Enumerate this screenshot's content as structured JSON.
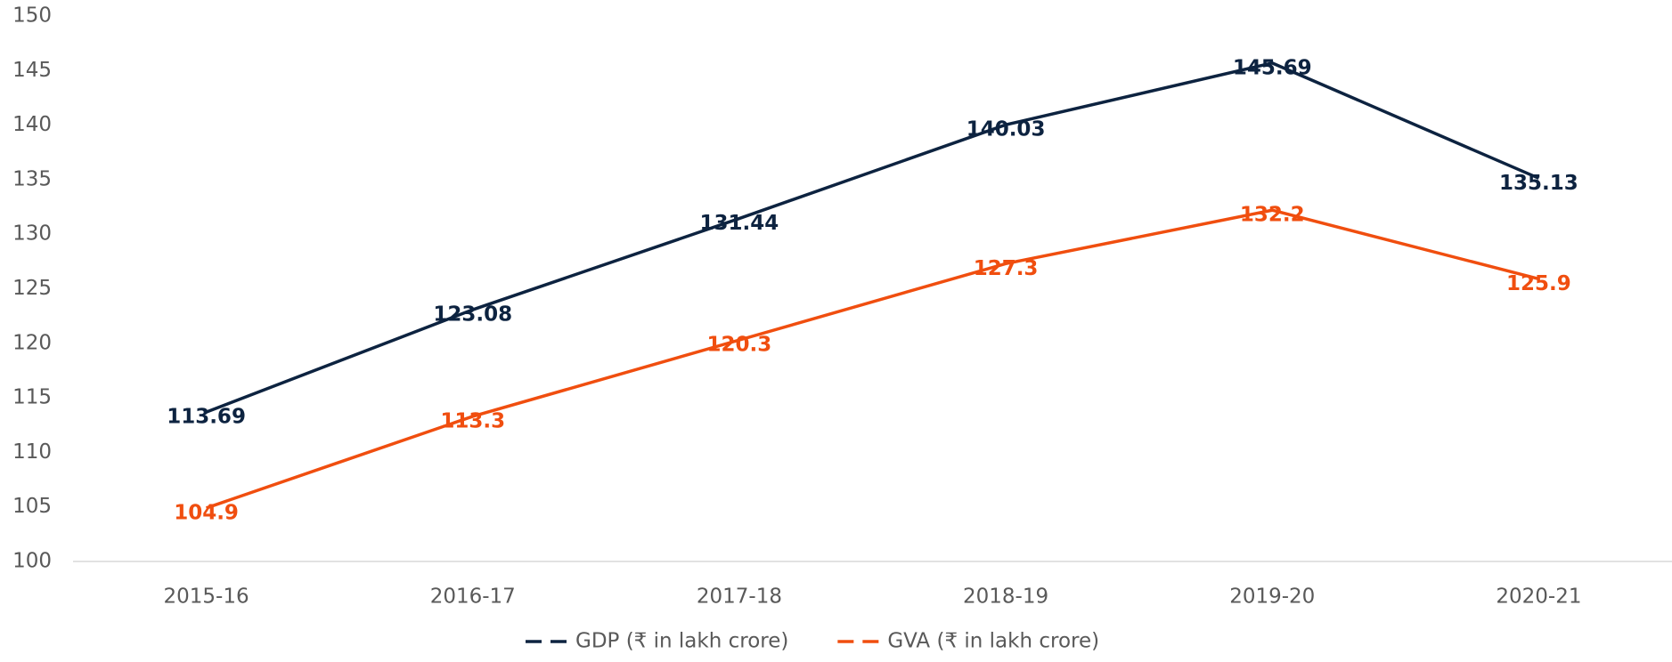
{
  "chart_data": {
    "type": "line",
    "categories": [
      "2015-16",
      "2016-17",
      "2017-18",
      "2018-19",
      "2019-20",
      "2020-21"
    ],
    "series": [
      {
        "name": "GDP (₹ in lakh crore)",
        "color": "#0d2340",
        "values": [
          113.69,
          123.08,
          131.44,
          140.03,
          145.69,
          135.13
        ]
      },
      {
        "name": "GVA (₹ in lakh crore)",
        "color": "#f04e0f",
        "values": [
          104.9,
          113.3,
          120.3,
          127.3,
          132.2,
          125.9
        ]
      }
    ],
    "ylim": [
      100,
      150
    ],
    "yticks": [
      100,
      105,
      110,
      115,
      120,
      125,
      130,
      135,
      140,
      145,
      150
    ],
    "grid": false,
    "legend": "bottom"
  }
}
